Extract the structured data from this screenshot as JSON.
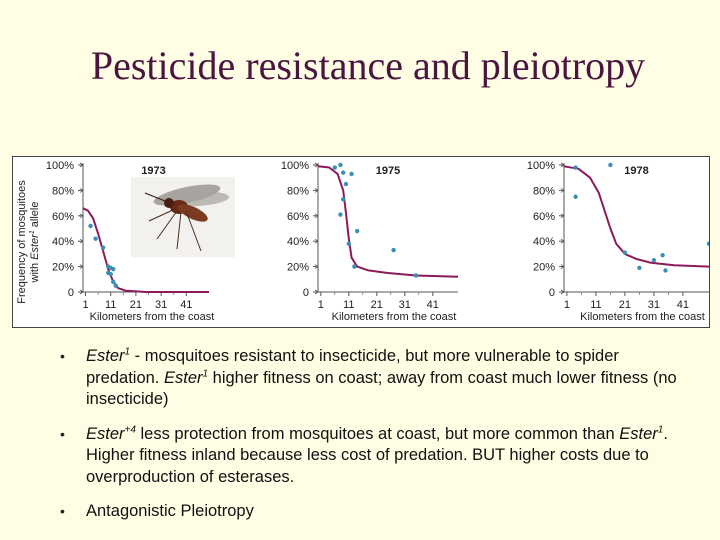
{
  "slide": {
    "title": "Pesticide resistance and pleiotropy"
  },
  "bullets": [
    {
      "part1_italic": "Ester",
      "part1_sup": "1",
      "part2": " - mosquitoes resistant to insecticide, but more vulnerable to spider predation.  ",
      "part3_italic": "Ester",
      "part3_sup": "1",
      "part4": " higher fitness on coast; away from coast much lower fitness (no insecticide)"
    },
    {
      "part1_italic": "Ester",
      "part1_sup": "+4",
      "part2": " less protection from mosquitoes at coast, but more common than ",
      "part3_italic": "Ester",
      "part3_sup": "1",
      "part4": ".  Higher fitness inland because less cost of predation.  BUT higher costs due to overproduction of esterases."
    },
    {
      "text": "Antagonistic Pleiotropy"
    }
  ],
  "chart_data": [
    {
      "type": "scatter",
      "title": "1973",
      "ylabel_line1": "Frequency of mosquitoes",
      "ylabel_line2_pre": "with ",
      "ylabel_line2_italic": "Ester",
      "ylabel_line2_sup": "1",
      "ylabel_line2_post": " allele",
      "xlabel": "Kilometers from the coast",
      "xticks": [
        1,
        11,
        21,
        31,
        41
      ],
      "yticks": [
        "0",
        "20%",
        "40%",
        "60%",
        "80%",
        "100%"
      ],
      "xlim": [
        0,
        50
      ],
      "ylim": [
        0,
        100
      ],
      "points": [
        {
          "x": 3,
          "y": 52
        },
        {
          "x": 5,
          "y": 42
        },
        {
          "x": 8,
          "y": 35
        },
        {
          "x": 10,
          "y": 20
        },
        {
          "x": 10,
          "y": 15
        },
        {
          "x": 11,
          "y": 19
        },
        {
          "x": 11,
          "y": 14
        },
        {
          "x": 12,
          "y": 18
        },
        {
          "x": 12,
          "y": 8
        },
        {
          "x": 13,
          "y": 5
        }
      ],
      "curve": [
        {
          "x": 0,
          "y": 66
        },
        {
          "x": 2,
          "y": 64
        },
        {
          "x": 4,
          "y": 58
        },
        {
          "x": 6,
          "y": 46
        },
        {
          "x": 8,
          "y": 32
        },
        {
          "x": 10,
          "y": 18
        },
        {
          "x": 12,
          "y": 8
        },
        {
          "x": 14,
          "y": 3
        },
        {
          "x": 17,
          "y": 1
        },
        {
          "x": 25,
          "y": 0
        },
        {
          "x": 50,
          "y": 0
        }
      ],
      "color_curve": "#8b1a5a",
      "color_points": "#3b8fb5"
    },
    {
      "type": "scatter",
      "title": "1975",
      "xlabel": "Kilometers from the coast",
      "xticks": [
        1,
        11,
        21,
        31,
        41
      ],
      "yticks": [
        "0",
        "20%",
        "40%",
        "60%",
        "80%",
        "100%"
      ],
      "xlim": [
        0,
        50
      ],
      "ylim": [
        0,
        100
      ],
      "points": [
        {
          "x": 6,
          "y": 98
        },
        {
          "x": 8,
          "y": 100
        },
        {
          "x": 9,
          "y": 94
        },
        {
          "x": 10,
          "y": 85
        },
        {
          "x": 9,
          "y": 73
        },
        {
          "x": 8,
          "y": 61
        },
        {
          "x": 12,
          "y": 93
        },
        {
          "x": 11,
          "y": 38
        },
        {
          "x": 14,
          "y": 48
        },
        {
          "x": 13,
          "y": 20
        },
        {
          "x": 27,
          "y": 33
        },
        {
          "x": 35,
          "y": 13
        }
      ],
      "curve": [
        {
          "x": 0,
          "y": 99
        },
        {
          "x": 4,
          "y": 98
        },
        {
          "x": 7,
          "y": 93
        },
        {
          "x": 9,
          "y": 80
        },
        {
          "x": 10,
          "y": 62
        },
        {
          "x": 11,
          "y": 42
        },
        {
          "x": 12,
          "y": 27
        },
        {
          "x": 14,
          "y": 20
        },
        {
          "x": 18,
          "y": 17
        },
        {
          "x": 25,
          "y": 15
        },
        {
          "x": 35,
          "y": 13
        },
        {
          "x": 50,
          "y": 12
        }
      ],
      "color_curve": "#8b1a5a",
      "color_points": "#3b8fb5"
    },
    {
      "type": "scatter",
      "title": "1978",
      "xlabel": "Kilometers from the coast",
      "xticks": [
        1,
        11,
        21,
        31,
        41
      ],
      "yticks": [
        "0",
        "20%",
        "40%",
        "60%",
        "80%",
        "100%"
      ],
      "xlim": [
        0,
        50
      ],
      "ylim": [
        0,
        100
      ],
      "points": [
        {
          "x": 4,
          "y": 98
        },
        {
          "x": 16,
          "y": 100
        },
        {
          "x": 4,
          "y": 75
        },
        {
          "x": 21,
          "y": 31
        },
        {
          "x": 26,
          "y": 19
        },
        {
          "x": 31,
          "y": 25
        },
        {
          "x": 34,
          "y": 29
        },
        {
          "x": 35,
          "y": 17
        },
        {
          "x": 50,
          "y": 38
        }
      ],
      "curve": [
        {
          "x": 0,
          "y": 99
        },
        {
          "x": 5,
          "y": 97
        },
        {
          "x": 9,
          "y": 90
        },
        {
          "x": 12,
          "y": 78
        },
        {
          "x": 14,
          "y": 64
        },
        {
          "x": 16,
          "y": 50
        },
        {
          "x": 18,
          "y": 38
        },
        {
          "x": 21,
          "y": 30
        },
        {
          "x": 25,
          "y": 26
        },
        {
          "x": 30,
          "y": 23
        },
        {
          "x": 38,
          "y": 21
        },
        {
          "x": 50,
          "y": 20
        }
      ],
      "color_curve": "#8b1a5a",
      "color_points": "#3b8fb5"
    }
  ]
}
